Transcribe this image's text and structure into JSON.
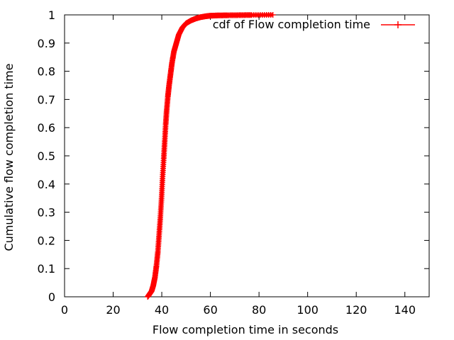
{
  "chart_data": {
    "type": "line",
    "xlabel": "Flow completion time in seconds",
    "ylabel": "Cumulative flow completion time",
    "xlim": [
      0,
      150
    ],
    "ylim": [
      0,
      1
    ],
    "xticks": [
      0,
      20,
      40,
      60,
      80,
      100,
      120,
      140
    ],
    "yticks": [
      0,
      0.1,
      0.2,
      0.3,
      0.4,
      0.5,
      0.6,
      0.7,
      0.8,
      0.9,
      1
    ],
    "xtick_labels": [
      "0",
      "20",
      "40",
      "60",
      "80",
      "100",
      "120",
      "140"
    ],
    "ytick_labels": [
      "0",
      "0.1",
      "0.2",
      "0.3",
      "0.4",
      "0.5",
      "0.6",
      "0.7",
      "0.8",
      "0.9",
      "1"
    ],
    "grid": false,
    "legend_position": "top-right",
    "series": [
      {
        "name": "cdf of Flow completion time",
        "color": "#ff0000",
        "marker": "plus",
        "points": [
          [
            34.2,
            0.0
          ],
          [
            35.0,
            0.01
          ],
          [
            35.8,
            0.02
          ],
          [
            36.5,
            0.04
          ],
          [
            37.2,
            0.07
          ],
          [
            37.8,
            0.11
          ],
          [
            38.4,
            0.16
          ],
          [
            38.9,
            0.22
          ],
          [
            39.4,
            0.28
          ],
          [
            39.9,
            0.35
          ],
          [
            40.3,
            0.42
          ],
          [
            40.8,
            0.49
          ],
          [
            41.2,
            0.55
          ],
          [
            41.6,
            0.61
          ],
          [
            42.0,
            0.66
          ],
          [
            42.5,
            0.71
          ],
          [
            43.0,
            0.75
          ],
          [
            43.6,
            0.79
          ],
          [
            44.2,
            0.83
          ],
          [
            45.0,
            0.87
          ],
          [
            46.0,
            0.9
          ],
          [
            47.0,
            0.93
          ],
          [
            48.5,
            0.955
          ],
          [
            50.0,
            0.97
          ],
          [
            52.0,
            0.98
          ],
          [
            54.0,
            0.987
          ],
          [
            56.0,
            0.992
          ],
          [
            58.0,
            0.995
          ],
          [
            60.0,
            0.997
          ],
          [
            63.0,
            0.998
          ],
          [
            67.0,
            0.9985
          ],
          [
            72.0,
            0.999
          ],
          [
            77.0,
            0.9995
          ],
          [
            85.7,
            1.0
          ]
        ]
      }
    ]
  }
}
